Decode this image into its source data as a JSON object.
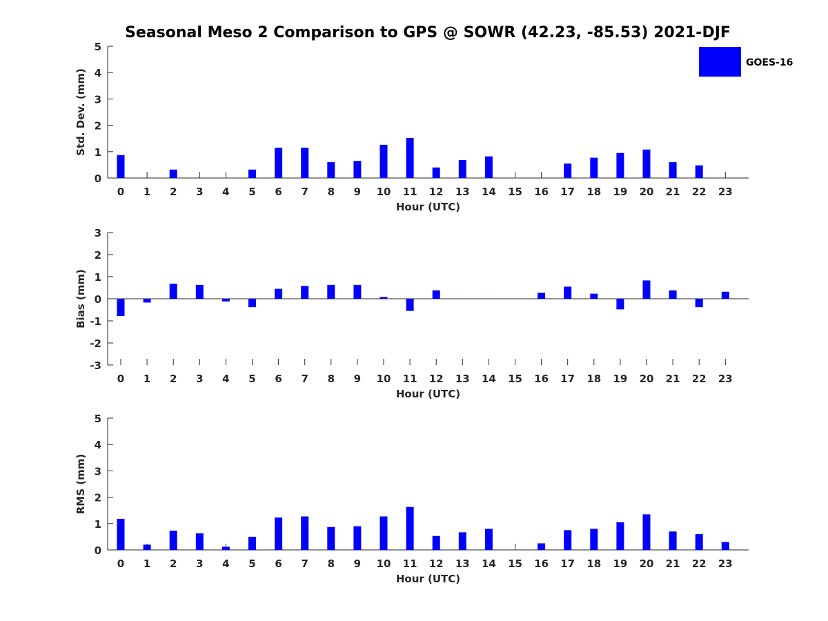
{
  "chart_data": {
    "type": "bar",
    "title": "Seasonal Meso 2 Comparison to GPS @ SOWR (42.23, -85.53) 2021-DJF",
    "legend": {
      "entries": [
        "GOES-16"
      ],
      "color": "#0000ff",
      "placement": "top-right"
    },
    "bar_color": "#0000ff",
    "panels": [
      {
        "name": "std-dev",
        "ylabel": "Std. Dev. (mm)",
        "xlabel": "Hour (UTC)",
        "ylim": [
          0,
          5
        ],
        "yticks": [
          0,
          1,
          2,
          3,
          4,
          5
        ],
        "categories": [
          "0",
          "1",
          "2",
          "3",
          "4",
          "5",
          "6",
          "7",
          "8",
          "9",
          "10",
          "11",
          "12",
          "13",
          "14",
          "15",
          "16",
          "17",
          "18",
          "19",
          "20",
          "21",
          "22",
          "23"
        ],
        "series": [
          {
            "name": "GOES-16",
            "values": [
              0.87,
              0,
              0.32,
              0,
              0,
              0.32,
              1.15,
              1.15,
              0.6,
              0.65,
              1.26,
              1.52,
              0.4,
              0.68,
              0.82,
              0,
              0,
              0.55,
              0.77,
              0.95,
              1.08,
              0.6,
              0.48,
              0
            ]
          }
        ]
      },
      {
        "name": "bias",
        "ylabel": "Bias (mm)",
        "xlabel": "Hour (UTC)",
        "ylim": [
          -3,
          3
        ],
        "yticks": [
          -3,
          -2,
          -1,
          0,
          1,
          2,
          3
        ],
        "categories": [
          "0",
          "1",
          "2",
          "3",
          "4",
          "5",
          "6",
          "7",
          "8",
          "9",
          "10",
          "11",
          "12",
          "13",
          "14",
          "15",
          "16",
          "17",
          "18",
          "19",
          "20",
          "21",
          "22",
          "23"
        ],
        "series": [
          {
            "name": "GOES-16",
            "values": [
              -0.78,
              -0.17,
              0.68,
              0.63,
              -0.12,
              -0.38,
              0.45,
              0.58,
              0.63,
              0.63,
              0.08,
              -0.55,
              0.38,
              0.01,
              0.01,
              0,
              0.27,
              0.55,
              0.23,
              -0.48,
              0.83,
              0.38,
              -0.38,
              0.32
            ]
          }
        ]
      },
      {
        "name": "rms",
        "ylabel": "RMS (mm)",
        "xlabel": "Hour (UTC)",
        "ylim": [
          0,
          5
        ],
        "yticks": [
          0,
          1,
          2,
          3,
          4,
          5
        ],
        "categories": [
          "0",
          "1",
          "2",
          "3",
          "4",
          "5",
          "6",
          "7",
          "8",
          "9",
          "10",
          "11",
          "12",
          "13",
          "14",
          "15",
          "16",
          "17",
          "18",
          "19",
          "20",
          "21",
          "22",
          "23"
        ],
        "series": [
          {
            "name": "GOES-16",
            "values": [
              1.18,
              0.2,
              0.73,
              0.63,
              0.12,
              0.5,
              1.23,
              1.27,
              0.87,
              0.9,
              1.27,
              1.63,
              0.53,
              0.67,
              0.8,
              0,
              0.25,
              0.75,
              0.8,
              1.05,
              1.35,
              0.7,
              0.6,
              0.3
            ]
          }
        ]
      }
    ]
  }
}
